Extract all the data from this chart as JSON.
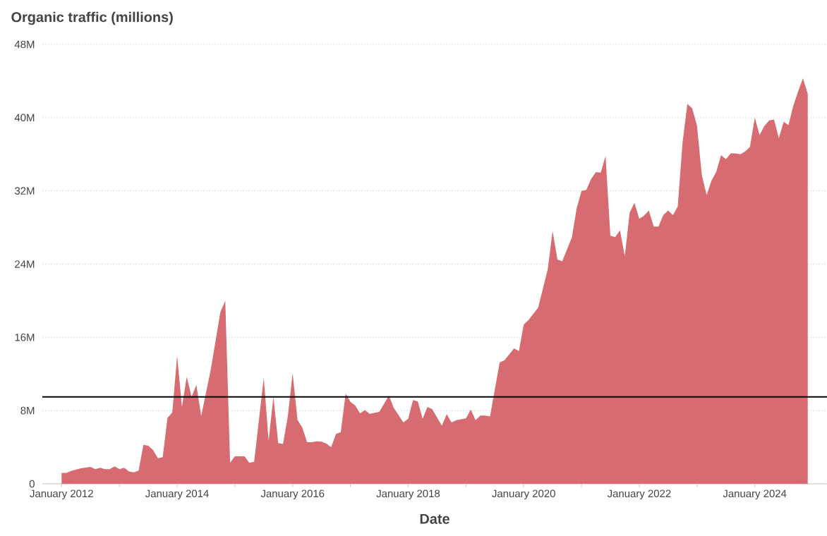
{
  "chart_data": {
    "type": "area",
    "title": "Organic traffic (millions)",
    "xlabel": "Date",
    "x": [
      "2012-01",
      "2012-02",
      "2012-03",
      "2012-05",
      "2012-07",
      "2012-08",
      "2012-09",
      "2012-10",
      "2012-11",
      "2012-12",
      "2013-01",
      "2013-02",
      "2013-03",
      "2013-04",
      "2013-05",
      "2013-06",
      "2013-07",
      "2013-08",
      "2013-09",
      "2013-10",
      "2013-11",
      "2013-12",
      "2014-01",
      "2014-02",
      "2014-03",
      "2014-04",
      "2014-05",
      "2014-06",
      "2014-08",
      "2014-10",
      "2014-11",
      "2014-12",
      "2015-01",
      "2015-03",
      "2015-04",
      "2015-05",
      "2015-07",
      "2015-08",
      "2015-09",
      "2015-10",
      "2015-11",
      "2015-12",
      "2016-01",
      "2016-02",
      "2016-03",
      "2016-04",
      "2016-05",
      "2016-06",
      "2016-07",
      "2016-08",
      "2016-09",
      "2016-10",
      "2016-11",
      "2016-12",
      "2017-01",
      "2017-02",
      "2017-03",
      "2017-04",
      "2017-05",
      "2017-07",
      "2017-09",
      "2017-10",
      "2017-12",
      "2018-01",
      "2018-02",
      "2018-03",
      "2018-04",
      "2018-05",
      "2018-06",
      "2018-07",
      "2018-08",
      "2018-09",
      "2018-10",
      "2018-11",
      "2019-01",
      "2019-02",
      "2019-03",
      "2019-04",
      "2019-05",
      "2019-06",
      "2019-08",
      "2019-09",
      "2019-11",
      "2019-12",
      "2020-01",
      "2020-02",
      "2020-04",
      "2020-06",
      "2020-07",
      "2020-08",
      "2020-09",
      "2020-11",
      "2020-12",
      "2021-01",
      "2021-02",
      "2021-03",
      "2021-04",
      "2021-05",
      "2021-06",
      "2021-07",
      "2021-08",
      "2021-09",
      "2021-10",
      "2021-11",
      "2021-12",
      "2022-01",
      "2022-02",
      "2022-03",
      "2022-04",
      "2022-05",
      "2022-06",
      "2022-07",
      "2022-08",
      "2022-09",
      "2022-10",
      "2022-11",
      "2022-12",
      "2023-01",
      "2023-02",
      "2023-03",
      "2023-04",
      "2023-05",
      "2023-06",
      "2023-07",
      "2023-08",
      "2023-09",
      "2023-10",
      "2023-11",
      "2023-12",
      "2024-01",
      "2024-02",
      "2024-03",
      "2024-04",
      "2024-05",
      "2024-06",
      "2024-07",
      "2024-08",
      "2024-09",
      "2024-10",
      "2024-11",
      "2024-12"
    ],
    "series": [
      {
        "color": "#d66b71",
        "values": [
          1.2,
          1.2,
          1.4,
          1.7,
          1.85,
          1.6,
          1.75,
          1.6,
          1.6,
          1.9,
          1.6,
          1.75,
          1.35,
          1.25,
          1.45,
          4.25,
          4.15,
          3.7,
          2.8,
          2.9,
          7.2,
          7.8,
          14.0,
          8.4,
          11.7,
          9.5,
          10.8,
          7.4,
          12.5,
          18.8,
          20.0,
          2.3,
          3.0,
          3.0,
          2.3,
          2.4,
          11.6,
          4.7,
          9.5,
          4.45,
          4.35,
          7.4,
          12.1,
          7.0,
          6.15,
          4.55,
          4.55,
          4.65,
          4.6,
          4.4,
          4.0,
          5.45,
          5.65,
          9.85,
          8.95,
          8.55,
          7.7,
          8.05,
          7.65,
          7.85,
          9.65,
          8.3,
          6.7,
          7.1,
          9.15,
          9.0,
          7.1,
          8.4,
          8.15,
          7.25,
          6.35,
          7.6,
          6.7,
          6.95,
          7.15,
          8.1,
          6.95,
          7.45,
          7.45,
          7.35,
          13.25,
          13.5,
          14.8,
          14.5,
          17.4,
          17.9,
          19.25,
          23.45,
          27.6,
          24.5,
          24.3,
          26.9,
          30.1,
          32.0,
          32.1,
          33.3,
          34.05,
          34.0,
          35.8,
          27.1,
          26.95,
          27.7,
          24.85,
          29.6,
          30.7,
          28.95,
          29.3,
          29.85,
          28.1,
          28.1,
          29.35,
          29.85,
          29.35,
          30.3,
          37.3,
          41.5,
          41.0,
          39.1,
          33.7,
          31.55,
          33.1,
          34.1,
          35.9,
          35.45,
          36.1,
          36.1,
          36.0,
          36.3,
          36.8,
          40.0,
          38.1,
          39.1,
          39.7,
          39.8,
          37.75,
          39.55,
          39.2,
          41.3,
          42.85,
          44.3,
          42.6
        ]
      }
    ],
    "xlim": [
      "2011-09",
      "2025-04"
    ],
    "xticks": [
      {
        "value": "2012-01",
        "label": "January 2012"
      },
      {
        "value": "2013-01",
        "label": null
      },
      {
        "value": "2014-01",
        "label": "January 2014"
      },
      {
        "value": "2015-01",
        "label": null
      },
      {
        "value": "2016-01",
        "label": "January 2016"
      },
      {
        "value": "2017-01",
        "label": null
      },
      {
        "value": "2018-01",
        "label": "January 2018"
      },
      {
        "value": "2019-01",
        "label": null
      },
      {
        "value": "2020-01",
        "label": "January 2020"
      },
      {
        "value": "2021-01",
        "label": null
      },
      {
        "value": "2022-01",
        "label": "January 2022"
      },
      {
        "value": "2023-01",
        "label": null
      },
      {
        "value": "2024-01",
        "label": "January 2024"
      }
    ],
    "ylim": [
      0,
      48
    ],
    "yticks": [
      0,
      {
        "value": 8,
        "label": "8M"
      },
      {
        "value": 16,
        "label": "16M"
      },
      {
        "value": 24,
        "label": "24M"
      },
      {
        "value": 32,
        "label": "32M"
      },
      {
        "value": 40,
        "label": "40M"
      },
      {
        "value": 48,
        "label": "48M"
      }
    ],
    "grid": "y",
    "ref_lines": [
      {
        "axis": "y",
        "value": 9.5,
        "color": "#000000"
      }
    ]
  }
}
